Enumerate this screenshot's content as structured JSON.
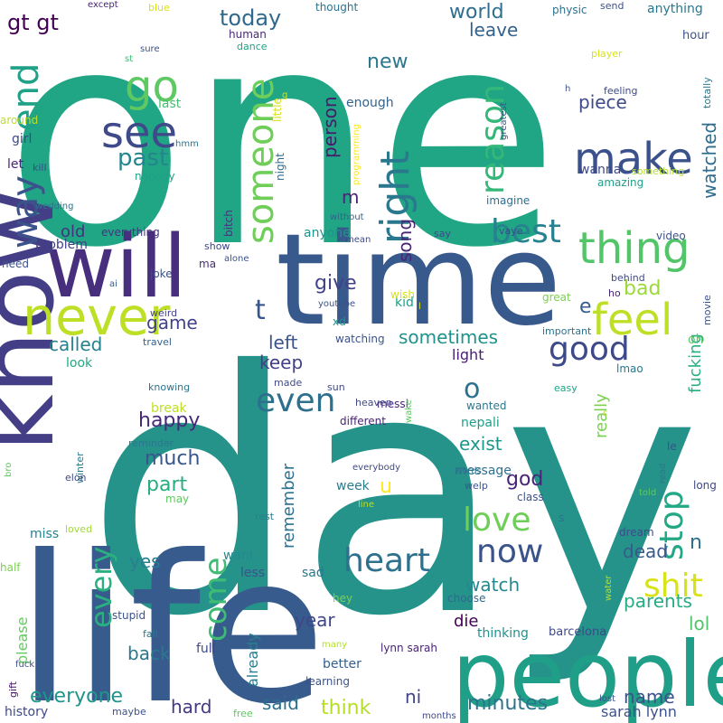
{
  "words": [
    {
      "text": "one",
      "color": "#21a685"
    },
    {
      "text": "day",
      "color": "#26938b"
    },
    {
      "text": "time",
      "color": "#38598c"
    },
    {
      "text": "life",
      "color": "#375b8d"
    },
    {
      "text": "will",
      "color": "#472f7d"
    },
    {
      "text": "people",
      "color": "#1f9f88"
    },
    {
      "text": "know",
      "color": "#433e85"
    },
    {
      "text": "never",
      "color": "#bddf26"
    },
    {
      "text": "go",
      "color": "#5ec962"
    },
    {
      "text": "make",
      "color": "#3b518b"
    },
    {
      "text": "see",
      "color": "#3e4a89"
    },
    {
      "text": "thing",
      "color": "#52c569"
    },
    {
      "text": "feel",
      "color": "#bddf26"
    },
    {
      "text": "right",
      "color": "#2a788e"
    },
    {
      "text": "someone",
      "color": "#6ece58"
    },
    {
      "text": "way",
      "color": "#3b528b"
    },
    {
      "text": "end",
      "color": "#1fa187"
    },
    {
      "text": "reason",
      "color": "#35b779"
    },
    {
      "text": "best",
      "color": "#26828e"
    },
    {
      "text": "good",
      "color": "#3e4989"
    },
    {
      "text": "heart",
      "color": "#2c718e"
    },
    {
      "text": "now",
      "color": "#3b528b"
    },
    {
      "text": "even",
      "color": "#2d708e"
    },
    {
      "text": "love",
      "color": "#6ece58"
    },
    {
      "text": "shit",
      "color": "#d8e219"
    },
    {
      "text": "stop",
      "color": "#22a884"
    },
    {
      "text": "come",
      "color": "#3fbc73"
    },
    {
      "text": "every",
      "color": "#2ab07f"
    },
    {
      "text": "past",
      "color": "#25858e"
    },
    {
      "text": "t",
      "color": "#39568c"
    },
    {
      "text": "o",
      "color": "#2c728e"
    },
    {
      "text": "gt gt",
      "color": "#440154"
    },
    {
      "text": "today",
      "color": "#31688e"
    },
    {
      "text": "world",
      "color": "#2e6e8e"
    },
    {
      "text": "leave",
      "color": "#33638d"
    },
    {
      "text": "new",
      "color": "#2a788e"
    },
    {
      "text": "piece",
      "color": "#3e4a89"
    },
    {
      "text": "watched",
      "color": "#2e6d8e"
    },
    {
      "text": "person",
      "color": "#481a6c"
    },
    {
      "text": "m",
      "color": "#482475"
    },
    {
      "text": "song",
      "color": "#482677"
    },
    {
      "text": "give",
      "color": "#414287"
    },
    {
      "text": "old",
      "color": "#46327e"
    },
    {
      "text": "bad",
      "color": "#9bd93c"
    },
    {
      "text": "e",
      "color": "#355e8d"
    },
    {
      "text": "game",
      "color": "#414487"
    },
    {
      "text": "called",
      "color": "#27808e"
    },
    {
      "text": "left",
      "color": "#3a548c"
    },
    {
      "text": "keep",
      "color": "#424086"
    },
    {
      "text": "sometimes",
      "color": "#20928c"
    },
    {
      "text": "happy",
      "color": "#482979"
    },
    {
      "text": "much",
      "color": "#39568c"
    },
    {
      "text": "part",
      "color": "#27ad81"
    },
    {
      "text": "fucking",
      "color": "#29af7f"
    },
    {
      "text": "really",
      "color": "#7ad151"
    },
    {
      "text": "exist",
      "color": "#1f968b"
    },
    {
      "text": "god",
      "color": "#482576"
    },
    {
      "text": "u",
      "color": "#fde725"
    },
    {
      "text": "n",
      "color": "#2e6f8e"
    },
    {
      "text": "remember",
      "color": "#2c728e"
    },
    {
      "text": "yes",
      "color": "#277f8e"
    },
    {
      "text": "watch",
      "color": "#23898e"
    },
    {
      "text": "dead",
      "color": "#38598c"
    },
    {
      "text": "year",
      "color": "#3f4788"
    },
    {
      "text": "die",
      "color": "#440154"
    },
    {
      "text": "parents",
      "color": "#25ac82"
    },
    {
      "text": "lol",
      "color": "#50c46a"
    },
    {
      "text": "back",
      "color": "#2a788e"
    },
    {
      "text": "everyone",
      "color": "#1f958b"
    },
    {
      "text": "hard",
      "color": "#443a83"
    },
    {
      "text": "said",
      "color": "#2d708e"
    },
    {
      "text": "think",
      "color": "#b5de2b"
    },
    {
      "text": "ni",
      "color": "#414487"
    },
    {
      "text": "minutes",
      "color": "#2c738e"
    },
    {
      "text": "name",
      "color": "#3b528b"
    },
    {
      "text": "sarah lynn",
      "color": "#3b528b"
    },
    {
      "text": "already",
      "color": "#277e8e"
    },
    {
      "text": "please",
      "color": "#63cb5f"
    },
    {
      "text": "girl",
      "color": "#3f4788"
    },
    {
      "text": "let",
      "color": "#482475"
    },
    {
      "text": "kill",
      "color": "#3e4989"
    },
    {
      "text": "hmm",
      "color": "#2b748e"
    },
    {
      "text": "nobody",
      "color": "#1fa088"
    },
    {
      "text": "last",
      "color": "#44bf70"
    },
    {
      "text": "st",
      "color": "#3dbc74"
    },
    {
      "text": "human",
      "color": "#482878"
    },
    {
      "text": "dance",
      "color": "#20a386"
    },
    {
      "text": "enough",
      "color": "#33638d"
    },
    {
      "text": "little",
      "color": "#d8e219"
    },
    {
      "text": "night",
      "color": "#2f6b8e"
    },
    {
      "text": "programming",
      "color": "#fde725"
    },
    {
      "text": "imagine",
      "color": "#2d708e"
    },
    {
      "text": "anyone",
      "color": "#20938c"
    },
    {
      "text": "bitch",
      "color": "#46327e"
    },
    {
      "text": "everything",
      "color": "#46337f"
    },
    {
      "text": "problem",
      "color": "#433e85"
    },
    {
      "text": "wedding",
      "color": "#2c728e"
    },
    {
      "text": "need",
      "color": "#3b528b"
    },
    {
      "text": "ma",
      "color": "#472d7b"
    },
    {
      "text": "show",
      "color": "#404588"
    },
    {
      "text": "alone",
      "color": "#3b528b"
    },
    {
      "text": "joke",
      "color": "#3b528b"
    },
    {
      "text": "ai",
      "color": "#365c8d"
    },
    {
      "text": "weird",
      "color": "#424086"
    },
    {
      "text": "travel",
      "color": "#33638d"
    },
    {
      "text": "look",
      "color": "#22a884"
    },
    {
      "text": "kid",
      "color": "#1f9e89"
    },
    {
      "text": "xd",
      "color": "#21918c"
    },
    {
      "text": "youtube",
      "color": "#3b528b"
    },
    {
      "text": "wish",
      "color": "#d8e219"
    },
    {
      "text": "watching",
      "color": "#3b528b"
    },
    {
      "text": "light",
      "color": "#482071"
    },
    {
      "text": "made",
      "color": "#3e4a89"
    },
    {
      "text": "knowing",
      "color": "#2c738e"
    },
    {
      "text": "break",
      "color": "#bddf26"
    },
    {
      "text": "reminder",
      "color": "#2a768e"
    },
    {
      "text": "winter",
      "color": "#2a788e"
    },
    {
      "text": "elon",
      "color": "#3e4989"
    },
    {
      "text": "may",
      "color": "#5ec962"
    },
    {
      "text": "loved",
      "color": "#a0da39"
    },
    {
      "text": "miss",
      "color": "#26828e"
    },
    {
      "text": "want",
      "color": "#23898e"
    },
    {
      "text": "less",
      "color": "#3b528b"
    },
    {
      "text": "sad",
      "color": "#2a788e"
    },
    {
      "text": "stupid",
      "color": "#3b528b"
    },
    {
      "text": "fall",
      "color": "#2a788e"
    },
    {
      "text": "full",
      "color": "#3e4a89"
    },
    {
      "text": "half",
      "color": "#7ad151"
    },
    {
      "text": "gift",
      "color": "#471365"
    },
    {
      "text": "fuck",
      "color": "#3b528b"
    },
    {
      "text": "history",
      "color": "#3e4989"
    },
    {
      "text": "maybe",
      "color": "#3b528b"
    },
    {
      "text": "free",
      "color": "#5ec962"
    },
    {
      "text": "months",
      "color": "#3e4a89"
    },
    {
      "text": "learning",
      "color": "#3b528b"
    },
    {
      "text": "better",
      "color": "#34608d"
    },
    {
      "text": "many",
      "color": "#b5de2b"
    },
    {
      "text": "hey",
      "color": "#7ad151"
    },
    {
      "text": "choose",
      "color": "#31688e"
    },
    {
      "text": "thinking",
      "color": "#21918c"
    },
    {
      "text": "barcelona",
      "color": "#3e4989"
    },
    {
      "text": "lynn sarah",
      "color": "#482475"
    },
    {
      "text": "lost",
      "color": "#3b528b"
    },
    {
      "text": "messi",
      "color": "#482475"
    },
    {
      "text": "different",
      "color": "#482475"
    },
    {
      "text": "heaven",
      "color": "#3e4a89"
    },
    {
      "text": "sun",
      "color": "#3e4989"
    },
    {
      "text": "wake",
      "color": "#5ec962"
    },
    {
      "text": "wanted",
      "color": "#2a788e"
    },
    {
      "text": "nepali",
      "color": "#1f9f88"
    },
    {
      "text": "everybody",
      "color": "#3e4989"
    },
    {
      "text": "message",
      "color": "#2d718e"
    },
    {
      "text": "words",
      "color": "#2c728e"
    },
    {
      "text": "welp",
      "color": "#3b528b"
    },
    {
      "text": "week",
      "color": "#287c8e"
    },
    {
      "text": "line",
      "color": "#b5de2b"
    },
    {
      "text": "class",
      "color": "#3b528b"
    },
    {
      "text": "s",
      "color": "#2c728e"
    },
    {
      "text": "dream",
      "color": "#3e4a89"
    },
    {
      "text": "rest",
      "color": "#277f8e"
    },
    {
      "text": "water",
      "color": "#b5de2b"
    },
    {
      "text": "long",
      "color": "#3e4989"
    },
    {
      "text": "read",
      "color": "#2a788e"
    },
    {
      "text": "told",
      "color": "#5ec962"
    },
    {
      "text": "le",
      "color": "#3b528b"
    },
    {
      "text": "easy",
      "color": "#20a386"
    },
    {
      "text": "c",
      "color": "#bddf26"
    },
    {
      "text": "lmao",
      "color": "#2a788e"
    },
    {
      "text": "oh",
      "color": "#5ec962"
    },
    {
      "text": "important",
      "color": "#2c728e"
    },
    {
      "text": "movie",
      "color": "#3b528b"
    },
    {
      "text": "ho",
      "color": "#482475"
    },
    {
      "text": "great",
      "color": "#7ad151"
    },
    {
      "text": "behind",
      "color": "#3e4989"
    },
    {
      "text": "video",
      "color": "#3b528b"
    },
    {
      "text": "vaye",
      "color": "#3e4989"
    },
    {
      "text": "say",
      "color": "#3e4989"
    },
    {
      "text": "mean",
      "color": "#3e4a89"
    },
    {
      "text": "without",
      "color": "#34608d"
    },
    {
      "text": "wanna",
      "color": "#3e4989"
    },
    {
      "text": "amazing",
      "color": "#1f9e89"
    },
    {
      "text": "something",
      "color": "#b5de2b"
    },
    {
      "text": "feeling",
      "color": "#3e4989"
    },
    {
      "text": "totally",
      "color": "#2a788e"
    },
    {
      "text": "h",
      "color": "#3b528b"
    },
    {
      "text": "player",
      "color": "#d8e219"
    },
    {
      "text": "greatest",
      "color": "#3b528b"
    },
    {
      "text": "physic",
      "color": "#2d708e"
    },
    {
      "text": "hour",
      "color": "#3b528b"
    },
    {
      "text": "send",
      "color": "#3b528b"
    },
    {
      "text": "anything",
      "color": "#2a788e"
    },
    {
      "text": "thought",
      "color": "#2c728e"
    },
    {
      "text": "except",
      "color": "#482475"
    },
    {
      "text": "blue",
      "color": "#d8e219"
    },
    {
      "text": "around",
      "color": "#bddf26"
    },
    {
      "text": "sure",
      "color": "#3b528b"
    },
    {
      "text": "g",
      "color": "#d8e219"
    },
    {
      "text": "bro",
      "color": "#5ec962"
    },
    {
      "text": "l",
      "color": "#d8e219"
    }
  ]
}
